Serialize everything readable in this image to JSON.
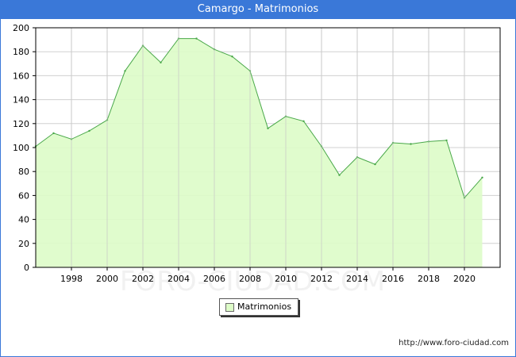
{
  "title": "Camargo - Matrimonios",
  "source": "http://www.foro-ciudad.com",
  "watermark": "FORO-CIUDAD.COM",
  "colors": {
    "header": "#3a78d8",
    "area_fill": "#ddfcc8",
    "line": "#4aa84a",
    "grid": "#d0d0d0"
  },
  "chart_data": {
    "type": "area",
    "title": "Camargo - Matrimonios",
    "xlabel": "",
    "ylabel": "",
    "x": [
      1996,
      1997,
      1998,
      1999,
      2000,
      2001,
      2002,
      2003,
      2004,
      2005,
      2006,
      2007,
      2008,
      2009,
      2010,
      2011,
      2012,
      2013,
      2014,
      2015,
      2016,
      2017,
      2018,
      2019,
      2020,
      2021
    ],
    "series": [
      {
        "name": "Matrimonios",
        "values": [
          101,
          112,
          107,
          114,
          123,
          164,
          185,
          171,
          191,
          191,
          182,
          176,
          164,
          116,
          126,
          122,
          101,
          77,
          92,
          86,
          104,
          103,
          105,
          106,
          58,
          75
        ]
      }
    ],
    "xlim": [
      1996,
      2022
    ],
    "ylim": [
      0,
      200
    ],
    "x_ticks": [
      "1998",
      "2000",
      "2002",
      "2004",
      "2006",
      "2008",
      "2010",
      "2012",
      "2014",
      "2016",
      "2018",
      "2020"
    ],
    "y_ticks": [
      "0",
      "20",
      "40",
      "60",
      "80",
      "100",
      "120",
      "140",
      "160",
      "180",
      "200"
    ],
    "grid": true,
    "legend_position": "bottom-center"
  }
}
